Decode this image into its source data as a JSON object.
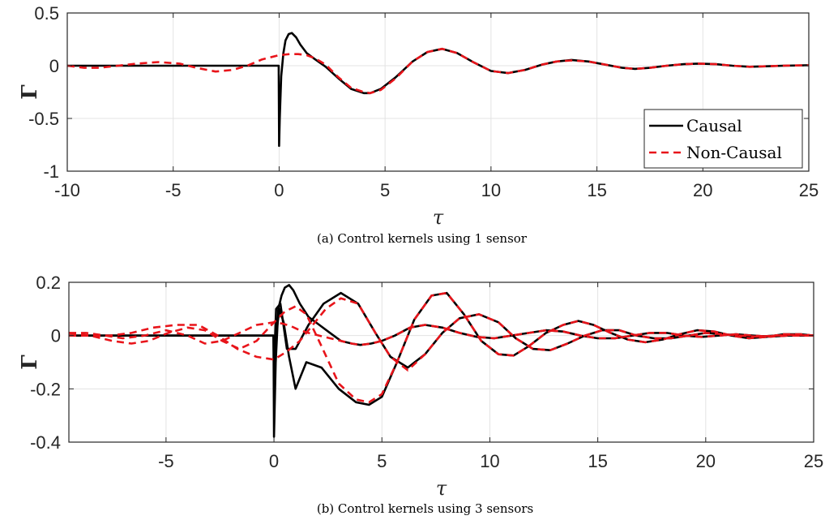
{
  "chart_data": [
    {
      "type": "line",
      "caption": "(a) Control kernels using 1 sensor",
      "xlabel": "τ",
      "ylabel": "Γ",
      "xlim": [
        -10,
        25
      ],
      "ylim": [
        -1,
        0.5
      ],
      "xticks": [
        -10,
        -5,
        0,
        5,
        10,
        15,
        20,
        25
      ],
      "xtick_labels": [
        "-10",
        "-5",
        "0",
        "5",
        "10",
        "15",
        "20",
        "25"
      ],
      "yticks": [
        -1,
        -0.5,
        0,
        0.5
      ],
      "ytick_labels": [
        "-1",
        "-0.5",
        "0",
        "0.5"
      ],
      "grid": true,
      "legend": {
        "position": "bottom-right",
        "entries": [
          "Causal",
          "Non-Causal"
        ]
      },
      "series": [
        {
          "name": "Causal",
          "color": "#000000",
          "style": "solid",
          "x": [
            -10,
            -0.02,
            0,
            0.03,
            0.1,
            0.2,
            0.3,
            0.45,
            0.6,
            0.8,
            1.0,
            1.3,
            1.7,
            2.2,
            2.8,
            3.4,
            4.0,
            4.3,
            4.8,
            5.5,
            6.3,
            7.0,
            7.7,
            8.4,
            9.2,
            10.0,
            10.8,
            11.6,
            12.4,
            13.1,
            13.8,
            14.6,
            15.4,
            16.2,
            16.8,
            17.5,
            18.3,
            19.1,
            19.8,
            20.6,
            21.4,
            22.2,
            23.0,
            23.8,
            25.0
          ],
          "y": [
            0,
            0,
            -0.76,
            -0.5,
            -0.1,
            0.12,
            0.24,
            0.3,
            0.31,
            0.27,
            0.2,
            0.12,
            0.06,
            -0.01,
            -0.12,
            -0.22,
            -0.26,
            -0.26,
            -0.22,
            -0.11,
            0.04,
            0.13,
            0.16,
            0.12,
            0.03,
            -0.05,
            -0.07,
            -0.04,
            0.01,
            0.04,
            0.055,
            0.04,
            0.01,
            -0.02,
            -0.03,
            -0.02,
            0.0,
            0.015,
            0.02,
            0.015,
            0.0,
            -0.01,
            -0.005,
            0.0,
            0.005
          ]
        },
        {
          "name": "Non-Causal",
          "color": "#e8141a",
          "style": "dashed",
          "x": [
            -10,
            -9.2,
            -8.5,
            -7.6,
            -6.7,
            -5.7,
            -4.7,
            -3.9,
            -3.0,
            -2.2,
            -1.5,
            -0.8,
            0,
            0.5,
            0.9,
            1.3,
            1.7,
            2.2,
            2.8,
            3.4,
            4.0,
            4.3,
            4.8,
            5.5,
            6.3,
            7.0,
            7.7,
            8.4,
            9.2,
            10.0,
            10.8,
            11.6,
            12.4,
            13.1,
            13.8,
            14.6,
            15.4,
            16.2,
            16.8,
            17.5,
            18.3,
            19.1,
            19.8,
            20.6,
            21.4,
            22.2,
            23.0,
            23.8,
            25.0
          ],
          "y": [
            0,
            -0.02,
            -0.02,
            0.0,
            0.02,
            0.035,
            0.02,
            -0.02,
            -0.055,
            -0.04,
            0.0,
            0.06,
            0.1,
            0.11,
            0.11,
            0.1,
            0.07,
            0.01,
            -0.11,
            -0.21,
            -0.25,
            -0.26,
            -0.23,
            -0.12,
            0.04,
            0.13,
            0.16,
            0.12,
            0.03,
            -0.05,
            -0.07,
            -0.04,
            0.01,
            0.04,
            0.05,
            0.04,
            0.01,
            -0.02,
            -0.03,
            -0.02,
            0.0,
            0.015,
            0.02,
            0.015,
            0.0,
            -0.01,
            -0.005,
            0.0,
            0.005
          ]
        }
      ]
    },
    {
      "type": "line",
      "caption": "(b) Control kernels using 3 sensors",
      "xlabel": "τ",
      "ylabel": "Γ",
      "xlim": [
        -9.5,
        25
      ],
      "ylim": [
        -0.4,
        0.2
      ],
      "xticks": [
        -5,
        0,
        5,
        10,
        15,
        20,
        25
      ],
      "xtick_labels": [
        "-5",
        "0",
        "5",
        "10",
        "15",
        "20",
        "25"
      ],
      "yticks": [
        -0.4,
        -0.2,
        0,
        0.2
      ],
      "ytick_labels": [
        "-0.4",
        "-0.2",
        "0",
        "0.2"
      ],
      "grid": true,
      "series": [
        {
          "name": "Causal",
          "color": "#000000",
          "style": "solid",
          "x": [
            -9.5,
            -0.02,
            0,
            0.08,
            0.2,
            0.35,
            0.5,
            0.7,
            0.9,
            1.2,
            1.6,
            2.1,
            2.6,
            3.1,
            3.6,
            4.0,
            4.5,
            5.0,
            5.6,
            6.3,
            7.0,
            7.8,
            8.6,
            9.4,
            10.2,
            11.0,
            11.8,
            12.6,
            13.4,
            14.2,
            15.0,
            15.8,
            16.6,
            17.4,
            18.2,
            19.0,
            19.8,
            20.6,
            21.4,
            22.2,
            23.0,
            23.8,
            25.0
          ],
          "y": [
            0,
            0,
            -0.38,
            -0.1,
            0.1,
            0.15,
            0.18,
            0.19,
            0.17,
            0.12,
            0.07,
            0.04,
            0.01,
            -0.02,
            -0.03,
            -0.035,
            -0.03,
            -0.02,
            0.0,
            0.03,
            0.04,
            0.03,
            0.01,
            -0.005,
            -0.01,
            0.0,
            0.01,
            0.02,
            0.015,
            0.0,
            -0.01,
            -0.01,
            0.0,
            0.01,
            0.01,
            0.0,
            -0.005,
            0.0,
            0.005,
            0.0,
            -0.004,
            0.0,
            0.0
          ]
        },
        {
          "name": "Causal",
          "color": "#000000",
          "style": "solid",
          "x": [
            -9.5,
            -0.02,
            0,
            0.1,
            0.25,
            0.45,
            0.7,
            1.0,
            1.5,
            2.2,
            3.0,
            3.8,
            4.4,
            5.0,
            5.7,
            6.5,
            7.3,
            8.0,
            8.8,
            9.6,
            10.4,
            11.1,
            11.8,
            12.6,
            13.4,
            14.1,
            14.8,
            15.6,
            16.4,
            17.2,
            18.0,
            18.8,
            19.6,
            20.4,
            21.2,
            22.0,
            22.8,
            23.6,
            24.4,
            25.0
          ],
          "y": [
            0,
            0,
            -0.2,
            0.0,
            0.1,
            0.05,
            -0.08,
            -0.2,
            -0.1,
            -0.12,
            -0.2,
            -0.25,
            -0.26,
            -0.23,
            -0.1,
            0.06,
            0.15,
            0.16,
            0.08,
            -0.02,
            -0.07,
            -0.075,
            -0.04,
            0.01,
            0.04,
            0.055,
            0.04,
            0.01,
            -0.015,
            -0.025,
            -0.015,
            0.005,
            0.02,
            0.015,
            0.0,
            -0.01,
            -0.005,
            0.005,
            0.005,
            0.0
          ]
        },
        {
          "name": "Causal",
          "color": "#000000",
          "style": "solid",
          "x": [
            -9.5,
            -0.02,
            0,
            0.1,
            0.3,
            0.6,
            1.0,
            1.6,
            2.3,
            3.1,
            3.9,
            4.7,
            5.4,
            6.2,
            7.0,
            7.8,
            8.6,
            9.5,
            10.4,
            11.2,
            12.0,
            12.8,
            13.6,
            14.4,
            15.2,
            16.0,
            16.8,
            17.6,
            18.4,
            19.2,
            20.0,
            20.8,
            21.6,
            22.4,
            23.2,
            24.0,
            25.0
          ],
          "y": [
            0,
            0,
            -0.12,
            0.1,
            0.12,
            -0.05,
            -0.05,
            0.04,
            0.12,
            0.16,
            0.12,
            0.01,
            -0.08,
            -0.12,
            -0.07,
            0.01,
            0.065,
            0.08,
            0.05,
            -0.01,
            -0.05,
            -0.055,
            -0.03,
            0.0,
            0.02,
            0.02,
            0.0,
            -0.01,
            -0.01,
            0.0,
            0.01,
            0.005,
            0.0,
            -0.004,
            0.0,
            0.003,
            0.0
          ]
        },
        {
          "name": "Non-Causal",
          "color": "#e8141a",
          "style": "dashed",
          "x": [
            -9.5,
            -8.7,
            -7.8,
            -7.0,
            -6.0,
            -5.0,
            -4.0,
            -3.2,
            -2.4,
            -1.6,
            -0.8,
            0,
            0.4,
            0.8,
            1.2,
            1.6,
            2.1,
            2.6,
            3.1,
            3.6,
            4.0,
            4.5,
            5.0,
            5.6,
            6.3,
            7.0,
            7.8,
            8.6,
            9.4,
            10.2,
            11.0,
            11.8,
            12.6,
            13.4,
            14.2,
            15.0,
            15.8,
            16.6,
            17.4,
            18.2,
            19.0,
            19.8,
            20.6,
            21.4,
            22.2,
            23.0,
            23.8,
            25.0
          ],
          "y": [
            0.01,
            0.01,
            0.0,
            -0.01,
            0.0,
            0.02,
            0.0,
            -0.03,
            -0.02,
            0.01,
            0.04,
            0.05,
            0.045,
            0.035,
            0.02,
            0.01,
            0.0,
            -0.01,
            -0.02,
            -0.03,
            -0.035,
            -0.03,
            -0.02,
            0.0,
            0.03,
            0.04,
            0.03,
            0.01,
            -0.005,
            -0.01,
            0.0,
            0.01,
            0.02,
            0.015,
            0.0,
            -0.01,
            -0.01,
            0.0,
            0.01,
            0.01,
            0.0,
            -0.005,
            0.0,
            0.005,
            0.0,
            -0.004,
            0.0,
            0.0
          ]
        },
        {
          "name": "Non-Causal",
          "color": "#e8141a",
          "style": "dashed",
          "x": [
            -9.5,
            -8.5,
            -7.5,
            -6.6,
            -5.8,
            -4.9,
            -4.0,
            -3.2,
            -2.4,
            -1.6,
            -0.8,
            0,
            0.5,
            1.0,
            1.5,
            2.2,
            3.0,
            3.8,
            4.4,
            5.0,
            5.7,
            6.5,
            7.3,
            8.0,
            8.8,
            9.6,
            10.4,
            11.1,
            11.8,
            12.6,
            13.4,
            14.1,
            14.8,
            15.6,
            16.4,
            17.2,
            18.0,
            18.8,
            19.6,
            20.4,
            21.2,
            22.0,
            22.8,
            23.6,
            24.4,
            25.0
          ],
          "y": [
            0.01,
            0.0,
            -0.02,
            -0.03,
            -0.02,
            0.01,
            0.03,
            0.02,
            -0.02,
            -0.05,
            -0.02,
            0.05,
            0.09,
            0.11,
            0.08,
            -0.04,
            -0.18,
            -0.24,
            -0.25,
            -0.22,
            -0.1,
            0.06,
            0.15,
            0.16,
            0.08,
            -0.02,
            -0.07,
            -0.075,
            -0.04,
            0.01,
            0.04,
            0.055,
            0.04,
            0.01,
            -0.015,
            -0.025,
            -0.015,
            0.005,
            0.02,
            0.015,
            0.0,
            -0.01,
            -0.005,
            0.005,
            0.005,
            0.0
          ]
        },
        {
          "name": "Non-Causal",
          "color": "#e8141a",
          "style": "dashed",
          "x": [
            -9.5,
            -8.6,
            -7.6,
            -6.6,
            -5.6,
            -4.5,
            -3.5,
            -2.6,
            -1.7,
            -0.8,
            0,
            0.6,
            1.2,
            1.8,
            2.4,
            3.1,
            3.9,
            4.7,
            5.4,
            6.2,
            7.0,
            7.8,
            8.6,
            9.5,
            10.4,
            11.2,
            12.0,
            12.8,
            13.6,
            14.4,
            15.2,
            16.0,
            16.8,
            17.6,
            18.4,
            19.2,
            20.0,
            20.8,
            21.6,
            22.4,
            23.2,
            24.0,
            25.0
          ],
          "y": [
            0.0,
            0.0,
            0.0,
            0.01,
            0.03,
            0.04,
            0.04,
            0.0,
            -0.05,
            -0.08,
            -0.09,
            -0.06,
            -0.02,
            0.04,
            0.1,
            0.14,
            0.12,
            0.01,
            -0.08,
            -0.13,
            -0.07,
            0.01,
            0.065,
            0.08,
            0.05,
            -0.01,
            -0.05,
            -0.055,
            -0.03,
            0.0,
            0.02,
            0.02,
            0.0,
            -0.01,
            -0.01,
            0.0,
            0.01,
            0.005,
            0.0,
            -0.004,
            0.0,
            0.003,
            0.0
          ]
        }
      ]
    }
  ]
}
